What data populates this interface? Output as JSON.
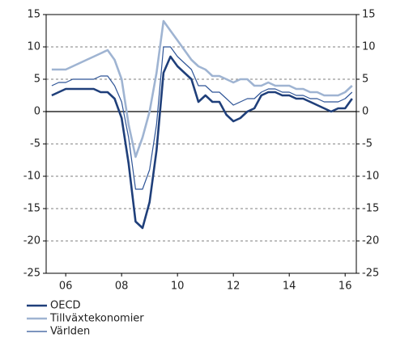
{
  "chart_data": {
    "type": "line",
    "x": [
      2006,
      2006.25,
      2006.5,
      2006.75,
      2007,
      2007.25,
      2007.5,
      2007.75,
      2008,
      2008.25,
      2008.5,
      2008.75,
      2009,
      2009.25,
      2009.5,
      2009.75,
      2010,
      2010.25,
      2010.5,
      2010.75,
      2011,
      2011.25,
      2011.5,
      2011.75,
      2012,
      2012.25,
      2012.5,
      2012.75,
      2013,
      2013.25,
      2013.5,
      2013.75,
      2014,
      2014.25,
      2014.5,
      2014.75,
      2015,
      2015.25,
      2015.5,
      2015.75,
      2016,
      2016.25,
      2016.5,
      2016.75
    ],
    "series": [
      {
        "name": "OECD",
        "color": "#1f3f7a",
        "width": 2.6,
        "values": [
          2.5,
          3,
          3.5,
          3.5,
          3.5,
          3.5,
          3.5,
          3,
          3,
          2,
          -1,
          -8,
          -17,
          -18,
          -14,
          -6,
          6,
          8.5,
          7,
          6,
          5,
          1.5,
          2.5,
          1.5,
          1.5,
          -0.5,
          -1.5,
          -1,
          0,
          0.5,
          2.5,
          3,
          3,
          2.5,
          2.5,
          2,
          2,
          1.5,
          1,
          0.5,
          0,
          0.5,
          0.5,
          2
        ]
      },
      {
        "name": "Tillväxtekonomier",
        "color": "#9fb4d2",
        "width": 2.6,
        "values": [
          6.5,
          6.5,
          6.5,
          7,
          7.5,
          8,
          8.5,
          9,
          9.5,
          8,
          5,
          -2,
          -7,
          -4,
          0,
          6,
          14,
          12.5,
          11,
          9.5,
          8,
          7,
          6.5,
          5.5,
          5.5,
          5,
          4.5,
          5,
          5,
          4,
          4,
          4.5,
          4,
          4,
          4,
          3.5,
          3.5,
          3,
          3,
          2.5,
          2.5,
          2.5,
          3,
          4
        ]
      },
      {
        "name": "Världen",
        "color": "#2f5597",
        "width": 1.2,
        "values": [
          4,
          4.5,
          4.5,
          5,
          5,
          5,
          5,
          5.5,
          5.5,
          4,
          1.5,
          -4,
          -12,
          -12,
          -9,
          -2,
          10,
          10,
          8.5,
          7.5,
          6.5,
          4,
          4,
          3,
          3,
          2,
          1,
          1.5,
          2,
          2,
          3,
          3.5,
          3.5,
          3,
          3,
          2.5,
          2.5,
          2,
          2,
          1.5,
          1.5,
          1.5,
          2,
          3
        ]
      }
    ],
    "xlim": [
      2005.8,
      2016.9
    ],
    "xticks": [
      {
        "value": 2006.5,
        "label": "06"
      },
      {
        "value": 2008.5,
        "label": "08"
      },
      {
        "value": 2010.5,
        "label": "10"
      },
      {
        "value": 2012.5,
        "label": "12"
      },
      {
        "value": 2014.5,
        "label": "14"
      },
      {
        "value": 2016.5,
        "label": "16"
      }
    ],
    "ylim": [
      -25,
      15
    ],
    "yticks": [
      -25,
      -20,
      -15,
      -10,
      -5,
      0,
      5,
      10,
      15
    ],
    "y2lim": [
      -25,
      15
    ],
    "y2ticks": [
      -25,
      -20,
      -15,
      -10,
      -5,
      0,
      5,
      10,
      15
    ],
    "grid": true,
    "legend": "bottom-left"
  }
}
